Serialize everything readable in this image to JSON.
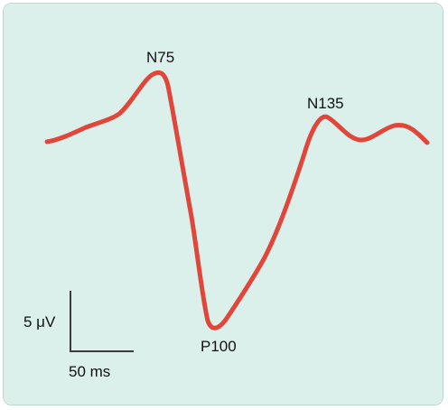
{
  "figure": {
    "background_color": "#dcf0eb",
    "trace_color": "#e0473a",
    "scale_bar_color": "#3c3c3c",
    "peaks": {
      "n75": "N75",
      "p100": "P100",
      "n135": "N135"
    },
    "scale_bar": {
      "voltage_label": "5 μV",
      "time_label": "50 ms"
    }
  }
}
